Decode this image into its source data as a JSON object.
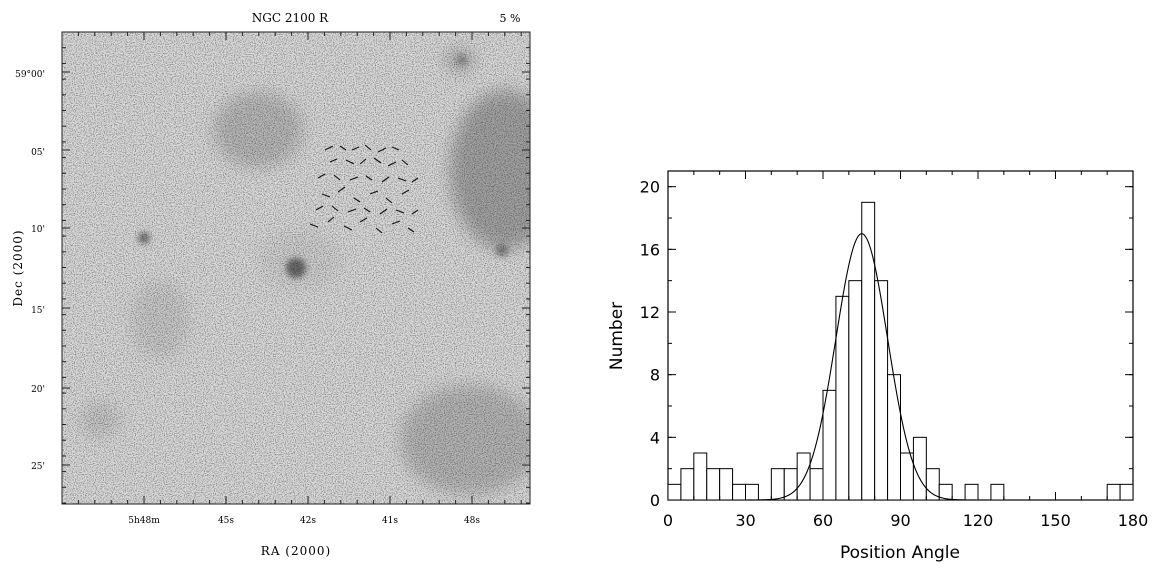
{
  "image_panel": {
    "title": "NGC 2100 R",
    "scale_label": "5 %",
    "dec_ticks": [
      "59°00'",
      "05'",
      "10'",
      "15'",
      "20'",
      "25'"
    ],
    "ra_ticks": [
      "5h48m",
      "45s",
      "42s",
      "41s",
      "48s"
    ],
    "ylabel": "Dec  (2000)",
    "xlabel": "RA  (2000)"
  },
  "chart_data": {
    "type": "bar",
    "xlabel": "Position Angle",
    "ylabel": "Number",
    "xlim": [
      0,
      180
    ],
    "ylim": [
      0,
      21
    ],
    "xticks": [
      0,
      30,
      60,
      90,
      120,
      150,
      180
    ],
    "yticks": [
      0,
      4,
      8,
      12,
      16,
      20
    ],
    "bin_width": 5,
    "bin_starts": [
      0,
      5,
      10,
      15,
      20,
      25,
      30,
      35,
      40,
      45,
      50,
      55,
      60,
      65,
      70,
      75,
      80,
      85,
      90,
      95,
      100,
      105,
      110,
      115,
      120,
      125,
      130,
      135,
      140,
      145,
      150,
      155,
      160,
      165,
      170,
      175
    ],
    "values": [
      1,
      2,
      3,
      2,
      2,
      1,
      1,
      0,
      2,
      2,
      3,
      2,
      7,
      13,
      14,
      19,
      14,
      8,
      3,
      4,
      2,
      1,
      0,
      1,
      0,
      1,
      0,
      0,
      0,
      0,
      0,
      0,
      0,
      0,
      1,
      1
    ],
    "fit": {
      "type": "gaussian",
      "amplitude": 17,
      "mean": 75,
      "sigma": 10
    },
    "grid": false
  }
}
